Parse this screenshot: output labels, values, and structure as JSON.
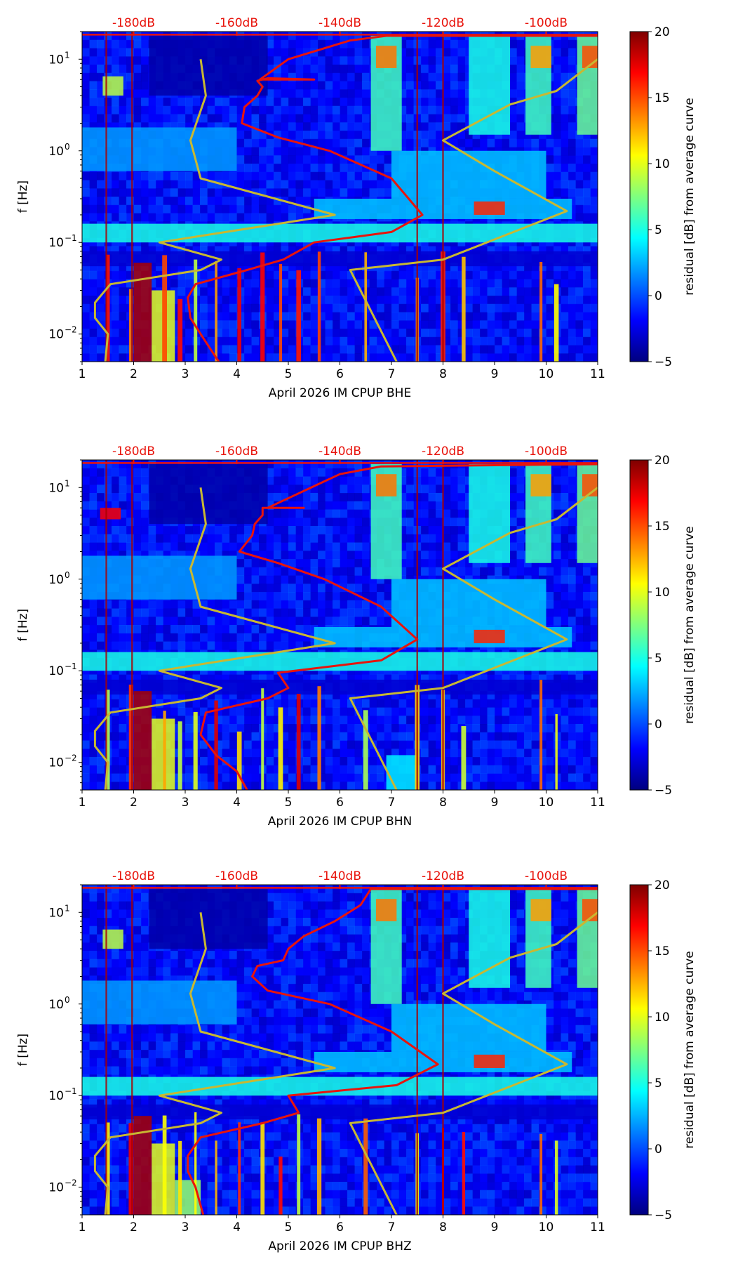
{
  "colors": {
    "noise_model": "#c8b832",
    "median_curve": "#e8140c",
    "db_label": "#e8140c",
    "axis": "#000000",
    "colormap": [
      "#00007f",
      "#0000ff",
      "#007fff",
      "#00ffff",
      "#7fff7f",
      "#ffff00",
      "#ff7f00",
      "#ff0000",
      "#7f0000"
    ]
  },
  "chart_data": [
    {
      "type": "heatmap",
      "title": "",
      "xlabel": "April 2026 IM CPUP  BHE",
      "ylabel": "f [Hz]",
      "channel": "BHE",
      "x_ticks": [
        "1",
        "2",
        "3",
        "4",
        "5",
        "6",
        "7",
        "8",
        "9",
        "10",
        "11"
      ],
      "xlim": [
        1,
        11
      ],
      "y_scale": "log",
      "ylim": [
        0.005,
        20
      ],
      "y_ticks": [
        {
          "value": 0.01,
          "base": "10",
          "exp": "−2"
        },
        {
          "value": 0.1,
          "base": "10",
          "exp": "−1"
        },
        {
          "value": 1,
          "base": "10",
          "exp": "0"
        },
        {
          "value": 10,
          "base": "10",
          "exp": "1"
        }
      ],
      "db_axis_labels": [
        "-180dB",
        "-160dB",
        "-140dB",
        "-120dB",
        "-100dB"
      ],
      "db_axis_positions_day": [
        2.0,
        4.0,
        6.0,
        8.0,
        10.0
      ],
      "colorbar": {
        "label": "residual [dB] from average curve",
        "min": -5,
        "max": 20,
        "ticks": [
          "20",
          "15",
          "10",
          "5",
          "0",
          "−5"
        ],
        "tick_values": [
          20,
          15,
          10,
          5,
          0,
          -5
        ]
      },
      "noise_model_low": {
        "x": [
          1.45,
          1.5,
          1.25,
          1.25,
          1.55,
          3.3,
          3.7,
          2.5,
          5.9,
          3.3,
          3.1,
          3.4,
          3.3
        ],
        "f": [
          0.005,
          0.01,
          0.015,
          0.022,
          0.035,
          0.05,
          0.065,
          0.1,
          0.2,
          0.5,
          1.3,
          4,
          10
        ]
      },
      "noise_model_high": {
        "x": [
          7.1,
          6.2,
          8.0,
          10.4,
          9.0,
          8.0,
          9.3,
          10.2,
          11.0
        ],
        "f": [
          0.005,
          0.05,
          0.065,
          0.22,
          0.6,
          1.3,
          3.2,
          4.5,
          10
        ]
      },
      "median_curve": {
        "x": [
          3.65,
          3.3,
          3.1,
          3.05,
          3.2,
          4.2,
          4.9,
          5.5,
          7.0,
          7.6,
          7.0,
          5.8,
          4.8,
          4.1,
          4.15,
          4.4,
          4.5,
          4.4,
          4.6,
          5.5,
          4.45,
          5.0,
          6.2,
          6.9,
          11.0
        ],
        "f": [
          0.005,
          0.01,
          0.015,
          0.025,
          0.035,
          0.05,
          0.065,
          0.1,
          0.13,
          0.2,
          0.5,
          1.0,
          1.4,
          2.0,
          3.0,
          4.0,
          5.0,
          5.8,
          6.2,
          6.0,
          6.0,
          10.0,
          16.0,
          18.0,
          18.0
        ]
      },
      "noise_bands": [
        {
          "x0": 1,
          "x1": 11,
          "f0": 0.055,
          "f1": 0.08,
          "level": -3
        },
        {
          "x0": 1,
          "x1": 11,
          "f0": 0.1,
          "f1": 0.16,
          "level": 5
        },
        {
          "x0": 5.5,
          "x1": 10.5,
          "f0": 0.18,
          "f1": 0.3,
          "level": 3
        },
        {
          "x0": 1,
          "x1": 4.0,
          "f0": 0.6,
          "f1": 1.8,
          "level": 2
        },
        {
          "x0": 7.0,
          "x1": 10.0,
          "f0": 0.3,
          "f1": 1.0,
          "level": 3
        },
        {
          "x0": 2.3,
          "x1": 4.6,
          "f0": 4.0,
          "f1": 18.0,
          "level": -4
        },
        {
          "x0": 6.6,
          "x1": 7.2,
          "f0": 1.0,
          "f1": 18.0,
          "level": 6
        },
        {
          "x0": 8.5,
          "x1": 9.3,
          "f0": 1.5,
          "f1": 18.0,
          "level": 5
        },
        {
          "x0": 9.6,
          "x1": 10.1,
          "f0": 1.5,
          "f1": 18.0,
          "level": 6
        },
        {
          "x0": 10.6,
          "x1": 11.0,
          "f0": 1.5,
          "f1": 18.0,
          "level": 7
        },
        {
          "x0": 6.7,
          "x1": 7.1,
          "f0": 8.0,
          "f1": 14.0,
          "level": 14
        },
        {
          "x0": 9.7,
          "x1": 10.1,
          "f0": 8.0,
          "f1": 14.0,
          "level": 13
        },
        {
          "x0": 10.7,
          "x1": 11.0,
          "f0": 8.0,
          "f1": 14.0,
          "level": 15
        },
        {
          "x0": 1.4,
          "x1": 1.8,
          "f0": 4.0,
          "f1": 6.5,
          "level": 9
        },
        {
          "x0": 8.6,
          "x1": 9.2,
          "f0": 0.2,
          "f1": 0.28,
          "level": 16
        },
        {
          "x0": 2.0,
          "x1": 2.35,
          "f0": 0.005,
          "f1": 0.06,
          "level": 19
        },
        {
          "x0": 2.35,
          "x1": 2.8,
          "f0": 0.005,
          "f1": 0.03,
          "level": 10
        }
      ],
      "spikes_x": [
        1.5,
        1.95,
        2.6,
        2.9,
        3.2,
        3.6,
        4.05,
        4.5,
        4.85,
        5.2,
        5.6,
        6.5,
        7.5,
        8.0,
        8.4,
        9.9,
        10.2
      ]
    },
    {
      "type": "heatmap",
      "title": "",
      "xlabel": "April 2026 IM CPUP  BHN",
      "ylabel": "f [Hz]",
      "channel": "BHN",
      "x_ticks": [
        "1",
        "2",
        "3",
        "4",
        "5",
        "6",
        "7",
        "8",
        "9",
        "10",
        "11"
      ],
      "xlim": [
        1,
        11
      ],
      "y_scale": "log",
      "ylim": [
        0.005,
        20
      ],
      "y_ticks": [
        {
          "value": 0.01,
          "base": "10",
          "exp": "−2"
        },
        {
          "value": 0.1,
          "base": "10",
          "exp": "−1"
        },
        {
          "value": 1,
          "base": "10",
          "exp": "0"
        },
        {
          "value": 10,
          "base": "10",
          "exp": "1"
        }
      ],
      "db_axis_labels": [
        "-180dB",
        "-160dB",
        "-140dB",
        "-120dB",
        "-100dB"
      ],
      "db_axis_positions_day": [
        2.0,
        4.0,
        6.0,
        8.0,
        10.0
      ],
      "colorbar": {
        "label": "residual [dB] from average curve",
        "min": -5,
        "max": 20,
        "ticks": [
          "20",
          "15",
          "10",
          "5",
          "0",
          "−5"
        ],
        "tick_values": [
          20,
          15,
          10,
          5,
          0,
          -5
        ]
      },
      "noise_model_low": {
        "x": [
          1.45,
          1.5,
          1.25,
          1.25,
          1.55,
          3.3,
          3.7,
          2.5,
          5.9,
          3.3,
          3.1,
          3.4,
          3.3
        ],
        "f": [
          0.005,
          0.01,
          0.015,
          0.022,
          0.035,
          0.05,
          0.065,
          0.1,
          0.2,
          0.5,
          1.3,
          4,
          10
        ]
      },
      "noise_model_high": {
        "x": [
          7.1,
          6.2,
          8.0,
          10.4,
          9.0,
          8.0,
          9.3,
          10.2,
          11.0
        ],
        "f": [
          0.005,
          0.05,
          0.065,
          0.22,
          0.6,
          1.3,
          3.2,
          4.5,
          10
        ]
      },
      "median_curve": {
        "x": [
          4.2,
          4.0,
          3.6,
          3.3,
          3.4,
          4.6,
          5.0,
          4.8,
          6.8,
          7.5,
          6.8,
          5.7,
          4.8,
          4.05,
          4.3,
          4.35,
          4.5,
          4.5,
          5.3,
          4.6,
          5.6,
          6.0,
          6.8,
          11.0
        ],
        "f": [
          0.005,
          0.008,
          0.012,
          0.02,
          0.035,
          0.05,
          0.065,
          0.095,
          0.13,
          0.22,
          0.5,
          1.0,
          1.5,
          2.0,
          3.0,
          4.0,
          5.0,
          6.0,
          6.0,
          6.0,
          11.0,
          14.0,
          17.0,
          18.0
        ]
      },
      "noise_bands": [
        {
          "x0": 1,
          "x1": 11,
          "f0": 0.055,
          "f1": 0.08,
          "level": -3
        },
        {
          "x0": 1,
          "x1": 11,
          "f0": 0.1,
          "f1": 0.16,
          "level": 5
        },
        {
          "x0": 5.5,
          "x1": 10.5,
          "f0": 0.18,
          "f1": 0.3,
          "level": 3
        },
        {
          "x0": 1,
          "x1": 4.0,
          "f0": 0.6,
          "f1": 1.8,
          "level": 2
        },
        {
          "x0": 7.0,
          "x1": 10.0,
          "f0": 0.3,
          "f1": 1.0,
          "level": 3
        },
        {
          "x0": 2.3,
          "x1": 4.6,
          "f0": 4.0,
          "f1": 18.0,
          "level": -4
        },
        {
          "x0": 6.6,
          "x1": 7.2,
          "f0": 1.0,
          "f1": 18.0,
          "level": 6
        },
        {
          "x0": 8.5,
          "x1": 9.3,
          "f0": 1.5,
          "f1": 18.0,
          "level": 5
        },
        {
          "x0": 9.6,
          "x1": 10.1,
          "f0": 1.5,
          "f1": 18.0,
          "level": 6
        },
        {
          "x0": 10.6,
          "x1": 11.0,
          "f0": 1.5,
          "f1": 18.0,
          "level": 7
        },
        {
          "x0": 6.7,
          "x1": 7.1,
          "f0": 8.0,
          "f1": 14.0,
          "level": 14
        },
        {
          "x0": 9.7,
          "x1": 10.1,
          "f0": 8.0,
          "f1": 14.0,
          "level": 13
        },
        {
          "x0": 10.7,
          "x1": 11.0,
          "f0": 8.0,
          "f1": 14.0,
          "level": 15
        },
        {
          "x0": 1.35,
          "x1": 1.75,
          "f0": 4.5,
          "f1": 6.0,
          "level": 17
        },
        {
          "x0": 8.6,
          "x1": 9.2,
          "f0": 0.2,
          "f1": 0.28,
          "level": 16
        },
        {
          "x0": 2.0,
          "x1": 2.35,
          "f0": 0.005,
          "f1": 0.06,
          "level": 19
        },
        {
          "x0": 2.35,
          "x1": 2.8,
          "f0": 0.005,
          "f1": 0.03,
          "level": 10
        },
        {
          "x0": 6.9,
          "x1": 7.5,
          "f0": 0.005,
          "f1": 0.012,
          "level": 4
        }
      ],
      "spikes_x": [
        1.5,
        1.95,
        2.6,
        2.9,
        3.2,
        3.6,
        4.05,
        4.5,
        4.85,
        5.2,
        5.6,
        6.5,
        7.5,
        8.0,
        8.4,
        9.9,
        10.2
      ]
    },
    {
      "type": "heatmap",
      "title": "",
      "xlabel": "April 2026 IM CPUP  BHZ",
      "ylabel": "f [Hz]",
      "channel": "BHZ",
      "x_ticks": [
        "1",
        "2",
        "3",
        "4",
        "5",
        "6",
        "7",
        "8",
        "9",
        "10",
        "11"
      ],
      "xlim": [
        1,
        11
      ],
      "y_scale": "log",
      "ylim": [
        0.005,
        20
      ],
      "y_ticks": [
        {
          "value": 0.01,
          "base": "10",
          "exp": "−2"
        },
        {
          "value": 0.1,
          "base": "10",
          "exp": "−1"
        },
        {
          "value": 1,
          "base": "10",
          "exp": "0"
        },
        {
          "value": 10,
          "base": "10",
          "exp": "1"
        }
      ],
      "db_axis_labels": [
        "-180dB",
        "-160dB",
        "-140dB",
        "-120dB",
        "-100dB"
      ],
      "db_axis_positions_day": [
        2.0,
        4.0,
        6.0,
        8.0,
        10.0
      ],
      "colorbar": {
        "label": "residual [dB] from average curve",
        "min": -5,
        "max": 20,
        "ticks": [
          "20",
          "15",
          "10",
          "5",
          "0",
          "−5"
        ],
        "tick_values": [
          20,
          15,
          10,
          5,
          0,
          -5
        ]
      },
      "noise_model_low": {
        "x": [
          1.45,
          1.5,
          1.25,
          1.25,
          1.55,
          3.3,
          3.7,
          2.5,
          5.9,
          3.3,
          3.1,
          3.4,
          3.3
        ],
        "f": [
          0.005,
          0.01,
          0.015,
          0.022,
          0.035,
          0.05,
          0.065,
          0.1,
          0.2,
          0.5,
          1.3,
          4,
          10
        ]
      },
      "noise_model_high": {
        "x": [
          7.1,
          6.2,
          8.0,
          10.4,
          9.0,
          8.0,
          9.3,
          10.2,
          11.0
        ],
        "f": [
          0.005,
          0.05,
          0.065,
          0.22,
          0.6,
          1.3,
          3.2,
          4.5,
          10
        ]
      },
      "median_curve": {
        "x": [
          3.35,
          3.2,
          3.05,
          3.05,
          3.3,
          4.5,
          5.2,
          5.0,
          7.1,
          7.9,
          7.0,
          5.8,
          4.6,
          4.3,
          4.4,
          4.9,
          5.0,
          5.3,
          5.9,
          6.4,
          6.6,
          11.0
        ],
        "f": [
          0.005,
          0.01,
          0.015,
          0.022,
          0.035,
          0.05,
          0.065,
          0.1,
          0.13,
          0.22,
          0.5,
          1.0,
          1.4,
          2.0,
          2.6,
          3.0,
          4.0,
          5.5,
          8.0,
          12.0,
          18.0,
          18.0
        ]
      },
      "noise_bands": [
        {
          "x0": 1,
          "x1": 11,
          "f0": 0.055,
          "f1": 0.08,
          "level": -3
        },
        {
          "x0": 1,
          "x1": 11,
          "f0": 0.1,
          "f1": 0.16,
          "level": 5
        },
        {
          "x0": 5.5,
          "x1": 10.5,
          "f0": 0.18,
          "f1": 0.3,
          "level": 3
        },
        {
          "x0": 1,
          "x1": 4.0,
          "f0": 0.6,
          "f1": 1.8,
          "level": 2
        },
        {
          "x0": 7.0,
          "x1": 10.0,
          "f0": 0.3,
          "f1": 1.0,
          "level": 3
        },
        {
          "x0": 2.3,
          "x1": 4.6,
          "f0": 4.0,
          "f1": 18.0,
          "level": -4
        },
        {
          "x0": 6.6,
          "x1": 7.2,
          "f0": 1.0,
          "f1": 18.0,
          "level": 6
        },
        {
          "x0": 8.5,
          "x1": 9.3,
          "f0": 1.5,
          "f1": 18.0,
          "level": 5
        },
        {
          "x0": 9.6,
          "x1": 10.1,
          "f0": 1.5,
          "f1": 18.0,
          "level": 6
        },
        {
          "x0": 10.6,
          "x1": 11.0,
          "f0": 1.5,
          "f1": 18.0,
          "level": 7
        },
        {
          "x0": 6.7,
          "x1": 7.1,
          "f0": 8.0,
          "f1": 14.0,
          "level": 14
        },
        {
          "x0": 9.7,
          "x1": 10.1,
          "f0": 8.0,
          "f1": 14.0,
          "level": 13
        },
        {
          "x0": 10.7,
          "x1": 11.0,
          "f0": 8.0,
          "f1": 14.0,
          "level": 15
        },
        {
          "x0": 1.4,
          "x1": 1.8,
          "f0": 4.0,
          "f1": 6.5,
          "level": 9
        },
        {
          "x0": 8.6,
          "x1": 9.2,
          "f0": 0.2,
          "f1": 0.28,
          "level": 16
        },
        {
          "x0": 2.0,
          "x1": 2.35,
          "f0": 0.005,
          "f1": 0.06,
          "level": 19
        },
        {
          "x0": 2.35,
          "x1": 2.8,
          "f0": 0.005,
          "f1": 0.03,
          "level": 10
        },
        {
          "x0": 2.8,
          "x1": 3.3,
          "f0": 0.005,
          "f1": 0.012,
          "level": 8
        }
      ],
      "spikes_x": [
        1.5,
        1.95,
        2.6,
        2.9,
        3.2,
        3.6,
        4.05,
        4.5,
        4.85,
        5.2,
        5.6,
        6.5,
        7.5,
        8.0,
        8.4,
        9.9,
        10.2
      ]
    }
  ]
}
